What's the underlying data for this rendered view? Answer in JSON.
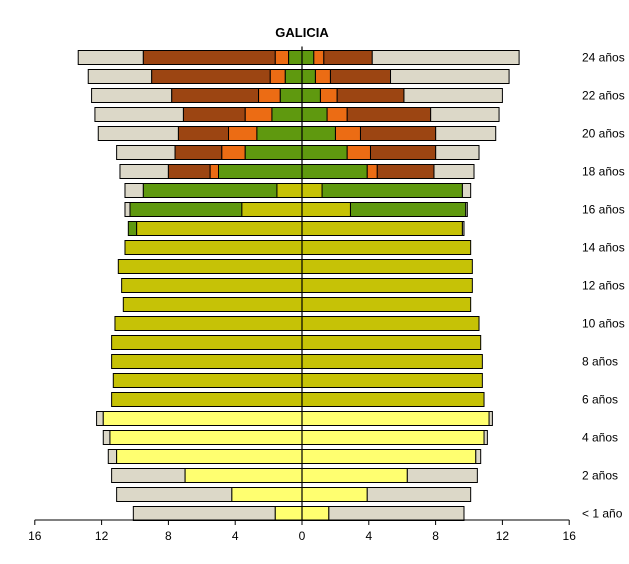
{
  "chart_data": {
    "type": "bar",
    "orientation": "horizontal",
    "layout": "population-pyramid",
    "title": "GALICIA",
    "xlim": [
      -16,
      16
    ],
    "x_ticks": [
      -16,
      -12,
      -8,
      -4,
      0,
      4,
      8,
      12,
      16
    ],
    "x_tick_labels": [
      "16",
      "12",
      "8",
      "4",
      "0",
      "4",
      "8",
      "12",
      "16"
    ],
    "ages": [
      24,
      23,
      22,
      21,
      20,
      19,
      18,
      17,
      16,
      15,
      14,
      13,
      12,
      11,
      10,
      9,
      8,
      7,
      6,
      5,
      4,
      3,
      2,
      1,
      0
    ],
    "age_labels": [
      "24 años",
      "",
      "22 años",
      "",
      "20 años",
      "",
      "18 años",
      "",
      "16 años",
      "",
      "14 años",
      "",
      "12 años",
      "",
      "10 años",
      "",
      "8 años",
      "",
      "6 años",
      "",
      "4 años",
      "",
      "2 años",
      "",
      "< 1 año"
    ],
    "segment_colors": {
      "beige": "#dcd8c8",
      "brown": "#9c4512",
      "orange": "#ec6c14",
      "green": "#5f990f",
      "olive": "#c6c206",
      "yellow": "#ffff70"
    },
    "left": [
      [
        [
          "beige",
          13.4
        ],
        [
          "brown",
          9.5
        ],
        [
          "orange",
          1.6
        ],
        [
          "green",
          0.8
        ]
      ],
      [
        [
          "beige",
          12.8
        ],
        [
          "brown",
          9.0
        ],
        [
          "orange",
          1.9
        ],
        [
          "green",
          1.0
        ]
      ],
      [
        [
          "beige",
          12.6
        ],
        [
          "brown",
          7.8
        ],
        [
          "orange",
          2.6
        ],
        [
          "green",
          1.3
        ]
      ],
      [
        [
          "beige",
          12.4
        ],
        [
          "brown",
          7.1
        ],
        [
          "orange",
          3.4
        ],
        [
          "green",
          1.8
        ]
      ],
      [
        [
          "beige",
          12.2
        ],
        [
          "brown",
          7.4
        ],
        [
          "orange",
          4.4
        ],
        [
          "green",
          2.7
        ]
      ],
      [
        [
          "beige",
          11.1
        ],
        [
          "brown",
          7.6
        ],
        [
          "orange",
          4.8
        ],
        [
          "green",
          3.4
        ]
      ],
      [
        [
          "beige",
          10.9
        ],
        [
          "brown",
          8.0
        ],
        [
          "orange",
          5.5
        ],
        [
          "green",
          5.0
        ]
      ],
      [
        [
          "beige",
          10.6
        ],
        [
          "green",
          9.5
        ],
        [
          "olive",
          1.5
        ]
      ],
      [
        [
          "beige",
          10.6
        ],
        [
          "green",
          10.3
        ],
        [
          "olive",
          3.6
        ]
      ],
      [
        [
          "green",
          10.4
        ],
        [
          "olive",
          9.9
        ]
      ],
      [
        [
          "olive",
          10.6
        ]
      ],
      [
        [
          "olive",
          11.0
        ]
      ],
      [
        [
          "olive",
          10.8
        ]
      ],
      [
        [
          "olive",
          10.7
        ]
      ],
      [
        [
          "olive",
          11.2
        ]
      ],
      [
        [
          "olive",
          11.4
        ]
      ],
      [
        [
          "olive",
          11.4
        ]
      ],
      [
        [
          "olive",
          11.3
        ]
      ],
      [
        [
          "olive",
          11.4
        ]
      ],
      [
        [
          "beige",
          12.3
        ],
        [
          "yellow",
          11.9
        ]
      ],
      [
        [
          "beige",
          11.9
        ],
        [
          "yellow",
          11.5
        ]
      ],
      [
        [
          "beige",
          11.6
        ],
        [
          "yellow",
          11.1
        ]
      ],
      [
        [
          "beige",
          11.4
        ],
        [
          "yellow",
          7.0
        ]
      ],
      [
        [
          "beige",
          11.1
        ],
        [
          "yellow",
          4.2
        ]
      ],
      [
        [
          "beige",
          10.1
        ],
        [
          "yellow",
          1.6
        ]
      ]
    ],
    "right": [
      [
        [
          "beige",
          13.0
        ],
        [
          "brown",
          4.2
        ],
        [
          "orange",
          1.3
        ],
        [
          "green",
          0.7
        ]
      ],
      [
        [
          "beige",
          12.4
        ],
        [
          "brown",
          5.3
        ],
        [
          "orange",
          1.7
        ],
        [
          "green",
          0.8
        ]
      ],
      [
        [
          "beige",
          12.0
        ],
        [
          "brown",
          6.1
        ],
        [
          "orange",
          2.1
        ],
        [
          "green",
          1.1
        ]
      ],
      [
        [
          "beige",
          11.8
        ],
        [
          "brown",
          7.7
        ],
        [
          "orange",
          2.7
        ],
        [
          "green",
          1.5
        ]
      ],
      [
        [
          "beige",
          11.6
        ],
        [
          "brown",
          8.0
        ],
        [
          "orange",
          3.5
        ],
        [
          "green",
          2.0
        ]
      ],
      [
        [
          "beige",
          10.6
        ],
        [
          "brown",
          8.0
        ],
        [
          "orange",
          4.1
        ],
        [
          "green",
          2.7
        ]
      ],
      [
        [
          "beige",
          10.3
        ],
        [
          "brown",
          7.9
        ],
        [
          "orange",
          4.5
        ],
        [
          "green",
          3.9
        ]
      ],
      [
        [
          "beige",
          10.1
        ],
        [
          "green",
          9.6
        ],
        [
          "olive",
          1.2
        ]
      ],
      [
        [
          "beige",
          9.9
        ],
        [
          "green",
          9.8
        ],
        [
          "olive",
          2.9
        ]
      ],
      [
        [
          "beige",
          9.7
        ],
        [
          "olive",
          9.6
        ]
      ],
      [
        [
          "olive",
          10.1
        ]
      ],
      [
        [
          "olive",
          10.2
        ]
      ],
      [
        [
          "olive",
          10.2
        ]
      ],
      [
        [
          "olive",
          10.1
        ]
      ],
      [
        [
          "olive",
          10.6
        ]
      ],
      [
        [
          "olive",
          10.7
        ]
      ],
      [
        [
          "olive",
          10.8
        ]
      ],
      [
        [
          "olive",
          10.8
        ]
      ],
      [
        [
          "olive",
          10.9
        ]
      ],
      [
        [
          "beige",
          11.4
        ],
        [
          "yellow",
          11.2
        ]
      ],
      [
        [
          "beige",
          11.1
        ],
        [
          "yellow",
          10.9
        ]
      ],
      [
        [
          "beige",
          10.7
        ],
        [
          "yellow",
          10.4
        ]
      ],
      [
        [
          "beige",
          10.5
        ],
        [
          "yellow",
          6.3
        ]
      ],
      [
        [
          "beige",
          10.1
        ],
        [
          "yellow",
          3.9
        ]
      ],
      [
        [
          "beige",
          9.7
        ],
        [
          "yellow",
          1.6
        ]
      ]
    ]
  }
}
